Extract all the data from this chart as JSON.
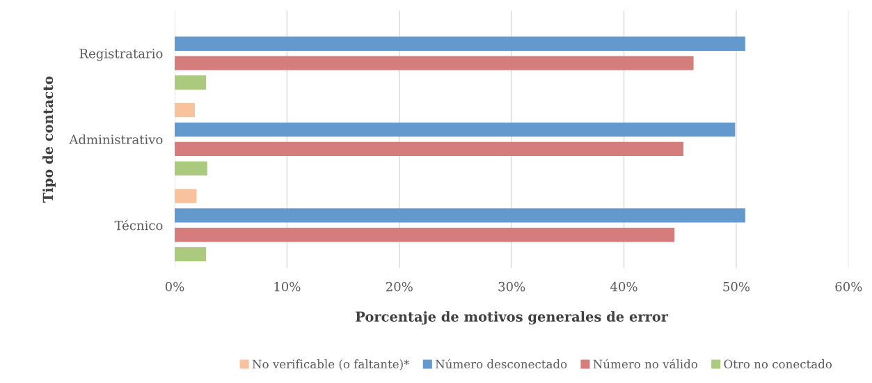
{
  "chart_data": {
    "type": "bar",
    "orientation": "horizontal",
    "categories": [
      "Registratario",
      "Administrativo",
      "Técnico"
    ],
    "xlabel": "Porcentaje de motivos generales de error",
    "ylabel": "Tipo de contacto",
    "series": [
      {
        "name": "No verificable (o faltante)*",
        "color": "#f8c29c",
        "values": [
          null,
          1.8,
          1.95
        ]
      },
      {
        "name": "Número desconectado",
        "color": "#6399cd",
        "values": [
          50.8,
          49.9,
          50.8
        ]
      },
      {
        "name": "Número no válido",
        "color": "#d57d7c",
        "values": [
          46.2,
          45.3,
          44.5
        ]
      },
      {
        "name": "Otro no conectado",
        "color": "#abca7d",
        "values": [
          2.8,
          2.9,
          2.8
        ]
      }
    ],
    "xlim": [
      0,
      60
    ],
    "xticks": [
      {
        "value": 0,
        "label": "0%"
      },
      {
        "value": 10,
        "label": "10%"
      },
      {
        "value": 20,
        "label": "20%"
      },
      {
        "value": 30,
        "label": "30%"
      },
      {
        "value": 40,
        "label": "40%"
      },
      {
        "value": 50,
        "label": "50%"
      },
      {
        "value": 60,
        "label": "60%"
      }
    ],
    "grid": "x",
    "legend": "bottom"
  }
}
